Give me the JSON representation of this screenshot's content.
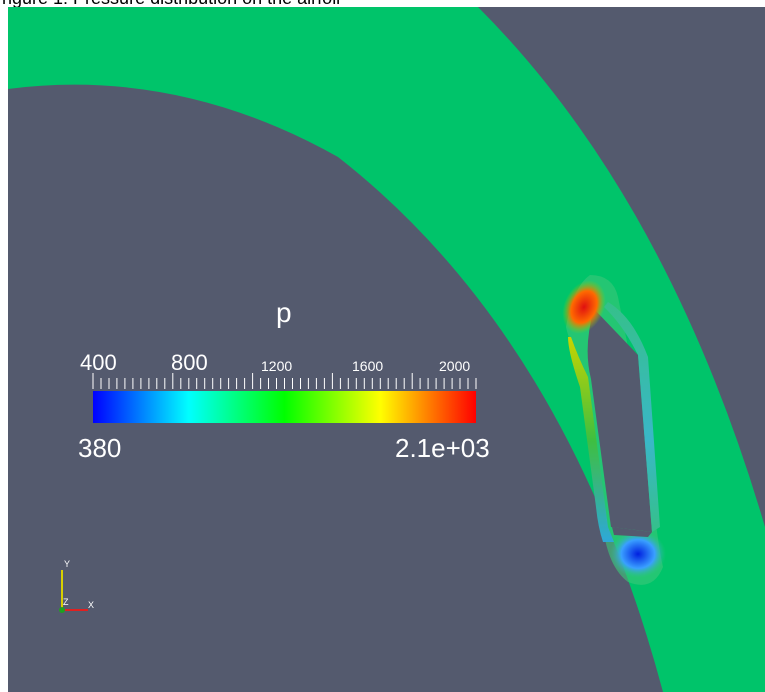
{
  "top_caption": "ngure 1: Pressure distribution on the airfoil",
  "colors": {
    "background": "#545a6e",
    "fluid": "#00c46a",
    "page": "#ffffff"
  },
  "colorbar": {
    "title": "p",
    "range_min_label": "380",
    "range_max_label": "2.1e+03",
    "tick_labels": [
      "400",
      "800",
      "1200",
      "1600",
      "2000"
    ],
    "min": 380,
    "max": 2100,
    "colormap": [
      "#0000ff",
      "#00ffff",
      "#00ff00",
      "#ffff00",
      "#ff0000"
    ]
  },
  "axes_triad": {
    "y_label": "Y",
    "z_label": "Z",
    "x_label": "X"
  }
}
